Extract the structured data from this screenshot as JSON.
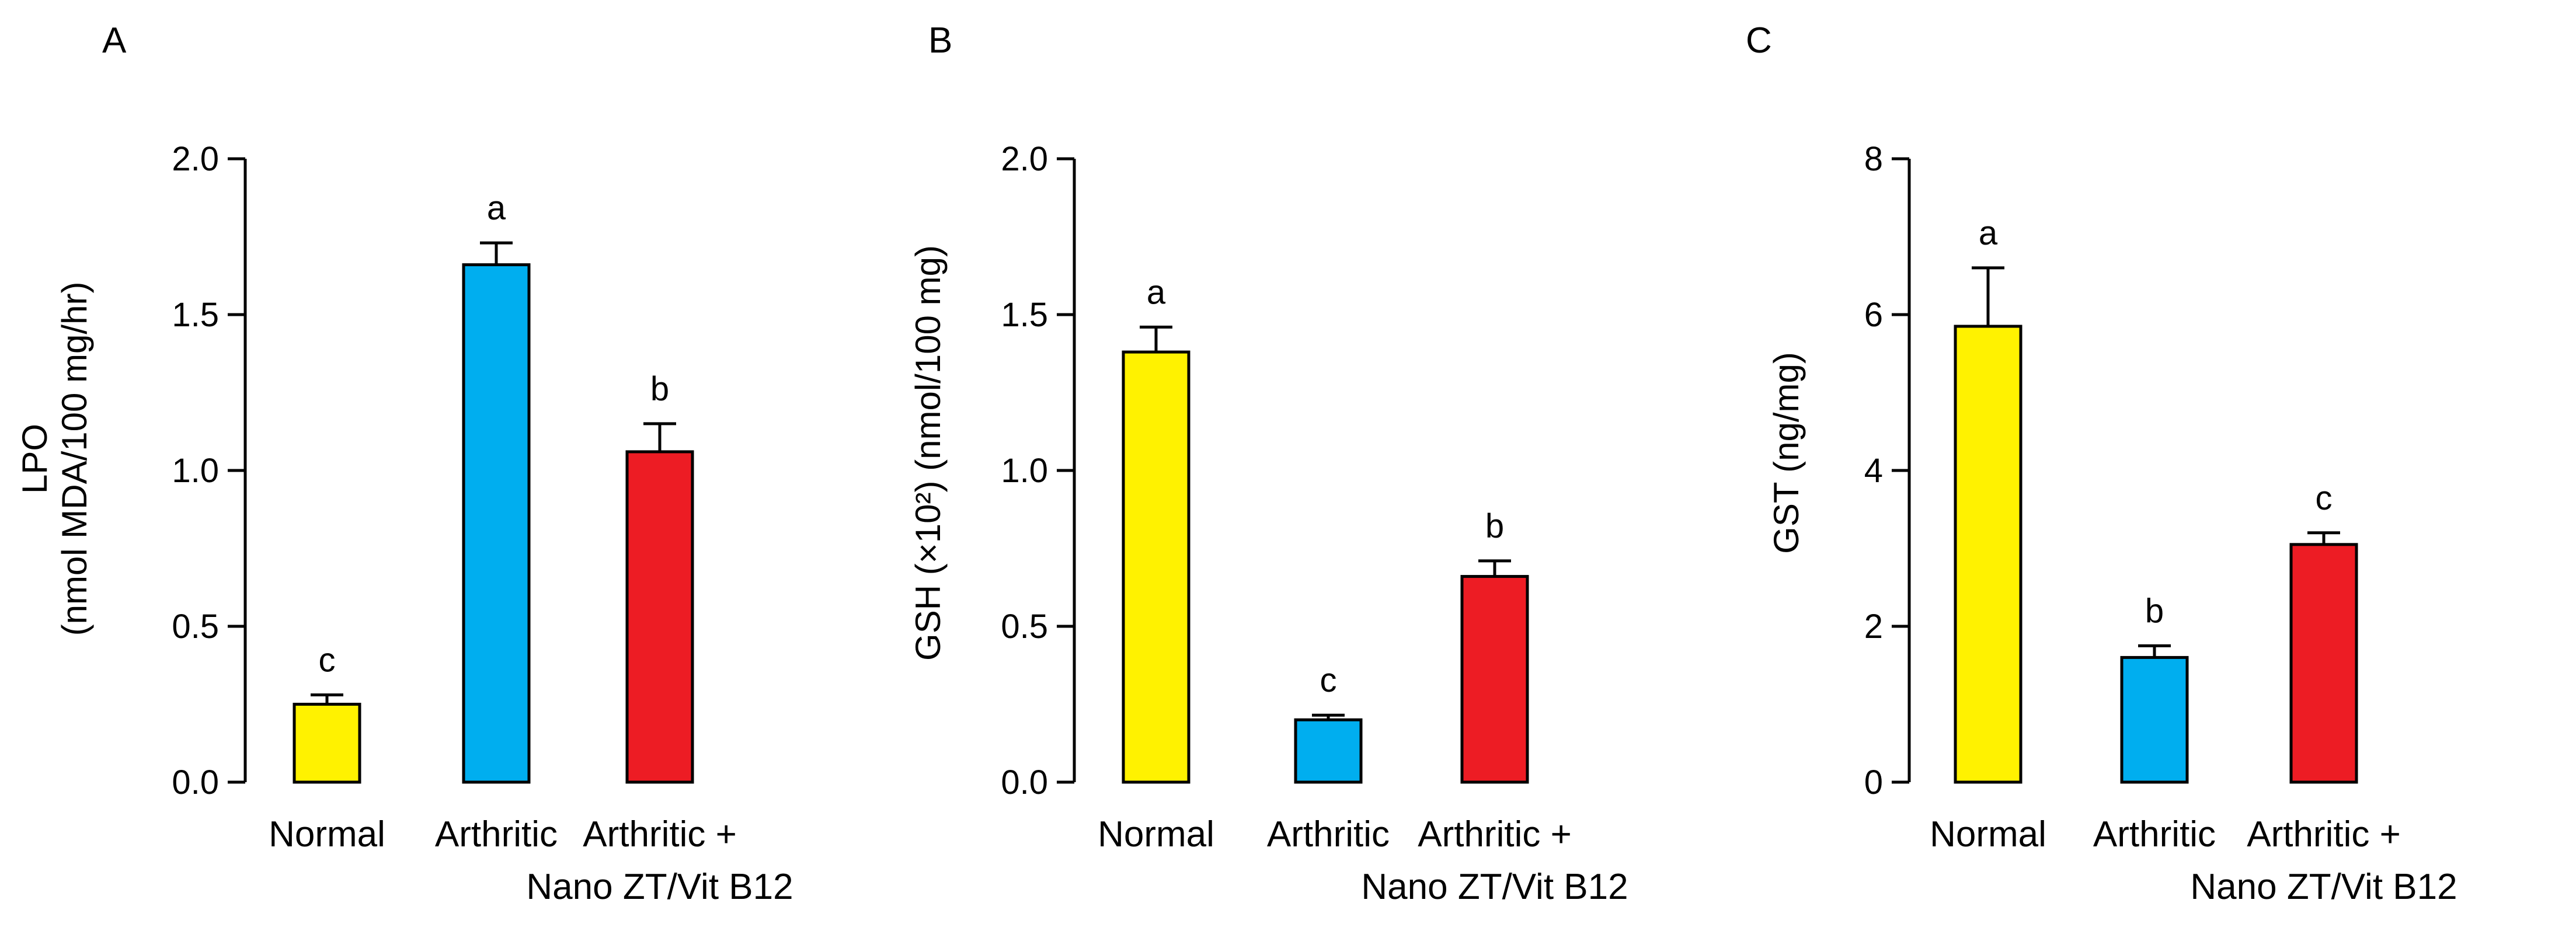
{
  "chart_data": [
    {
      "panel_label": "A",
      "type": "bar",
      "ylabel_line1": "LPO",
      "ylabel_line2": "(nmol MDA/100 mg/hr)",
      "ylim": [
        0,
        2.0
      ],
      "yticks": [
        "0.0",
        "0.5",
        "1.0",
        "1.5",
        "2.0"
      ],
      "ytick_values": [
        0,
        0.5,
        1.0,
        1.5,
        2.0
      ],
      "categories": [
        {
          "line1": "Normal",
          "line2": ""
        },
        {
          "line1": "Arthritic",
          "line2": ""
        },
        {
          "line1": "Arthritic +",
          "line2": "Nano ZT/Vit B12"
        }
      ],
      "values": [
        0.25,
        1.66,
        1.06
      ],
      "errors": [
        0.03,
        0.07,
        0.09
      ],
      "letters": [
        "c",
        "a",
        "b"
      ],
      "colors": [
        "#FFF200",
        "#00AEEF",
        "#ED1C24"
      ]
    },
    {
      "panel_label": "B",
      "type": "bar",
      "ylabel_line1": "GSH (×10²) (nmol/100 mg)",
      "ylabel_line2": "",
      "ylim": [
        0,
        2.0
      ],
      "yticks": [
        "0.0",
        "0.5",
        "1.0",
        "1.5",
        "2.0"
      ],
      "ytick_values": [
        0,
        0.5,
        1.0,
        1.5,
        2.0
      ],
      "categories": [
        {
          "line1": "Normal",
          "line2": ""
        },
        {
          "line1": "Arthritic",
          "line2": ""
        },
        {
          "line1": "Arthritic +",
          "line2": "Nano ZT/Vit B12"
        }
      ],
      "values": [
        1.38,
        0.2,
        0.66
      ],
      "errors": [
        0.08,
        0.015,
        0.05
      ],
      "letters": [
        "a",
        "c",
        "b"
      ],
      "colors": [
        "#FFF200",
        "#00AEEF",
        "#ED1C24"
      ]
    },
    {
      "panel_label": "C",
      "type": "bar",
      "ylabel_line1": "GST (ng/mg)",
      "ylabel_line2": "",
      "ylim": [
        0,
        8
      ],
      "yticks": [
        "0",
        "2",
        "4",
        "6",
        "8"
      ],
      "ytick_values": [
        0,
        2,
        4,
        6,
        8
      ],
      "categories": [
        {
          "line1": "Normal",
          "line2": ""
        },
        {
          "line1": "Arthritic",
          "line2": ""
        },
        {
          "line1": "Arthritic +",
          "line2": "Nano ZT/Vit B12"
        }
      ],
      "values": [
        5.85,
        1.6,
        3.05
      ],
      "errors": [
        0.75,
        0.15,
        0.15
      ],
      "letters": [
        "a",
        "b",
        "c"
      ],
      "colors": [
        "#FFF200",
        "#00AEEF",
        "#ED1C24"
      ]
    }
  ]
}
